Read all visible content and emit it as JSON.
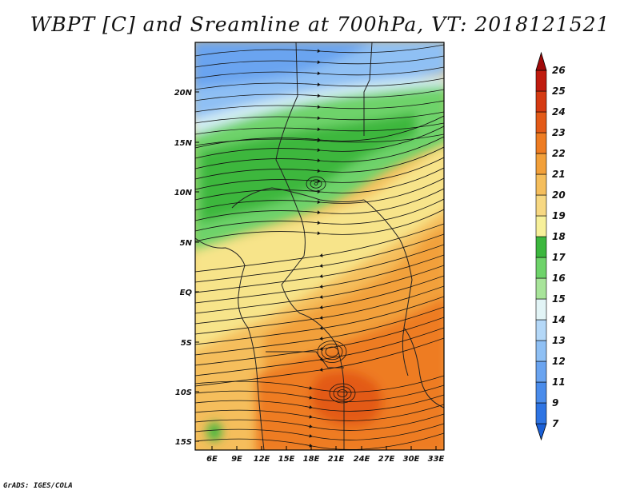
{
  "title": "WBPT [C] and Sreamline at 700hPa, VT: 2018121521",
  "credit": "GrADS: IGES/COLA",
  "map": {
    "lat_labels": [
      "20N",
      "15N",
      "10N",
      "5N",
      "EQ",
      "5S",
      "10S",
      "15S"
    ],
    "lon_labels": [
      "6E",
      "9E",
      "12E",
      "15E",
      "18E",
      "21E",
      "24E",
      "27E",
      "30E",
      "33E"
    ]
  },
  "colorbar": {
    "labels": [
      "7",
      "9",
      "11",
      "12",
      "13",
      "14",
      "15",
      "16",
      "17",
      "18",
      "19",
      "20",
      "21",
      "22",
      "23",
      "24",
      "25",
      "26"
    ],
    "colors": [
      "#1a5fd6",
      "#2e74e3",
      "#4a8ceb",
      "#6aa4f0",
      "#8fc0f4",
      "#b4d8f8",
      "#e2f4f6",
      "#a8e49a",
      "#6ed36a",
      "#3cb73e",
      "#f7f09a",
      "#f7d882",
      "#f5be5c",
      "#f2a03a",
      "#ee7c22",
      "#e35a18",
      "#d53a12",
      "#c01b0e",
      "#a00a0a"
    ]
  }
}
